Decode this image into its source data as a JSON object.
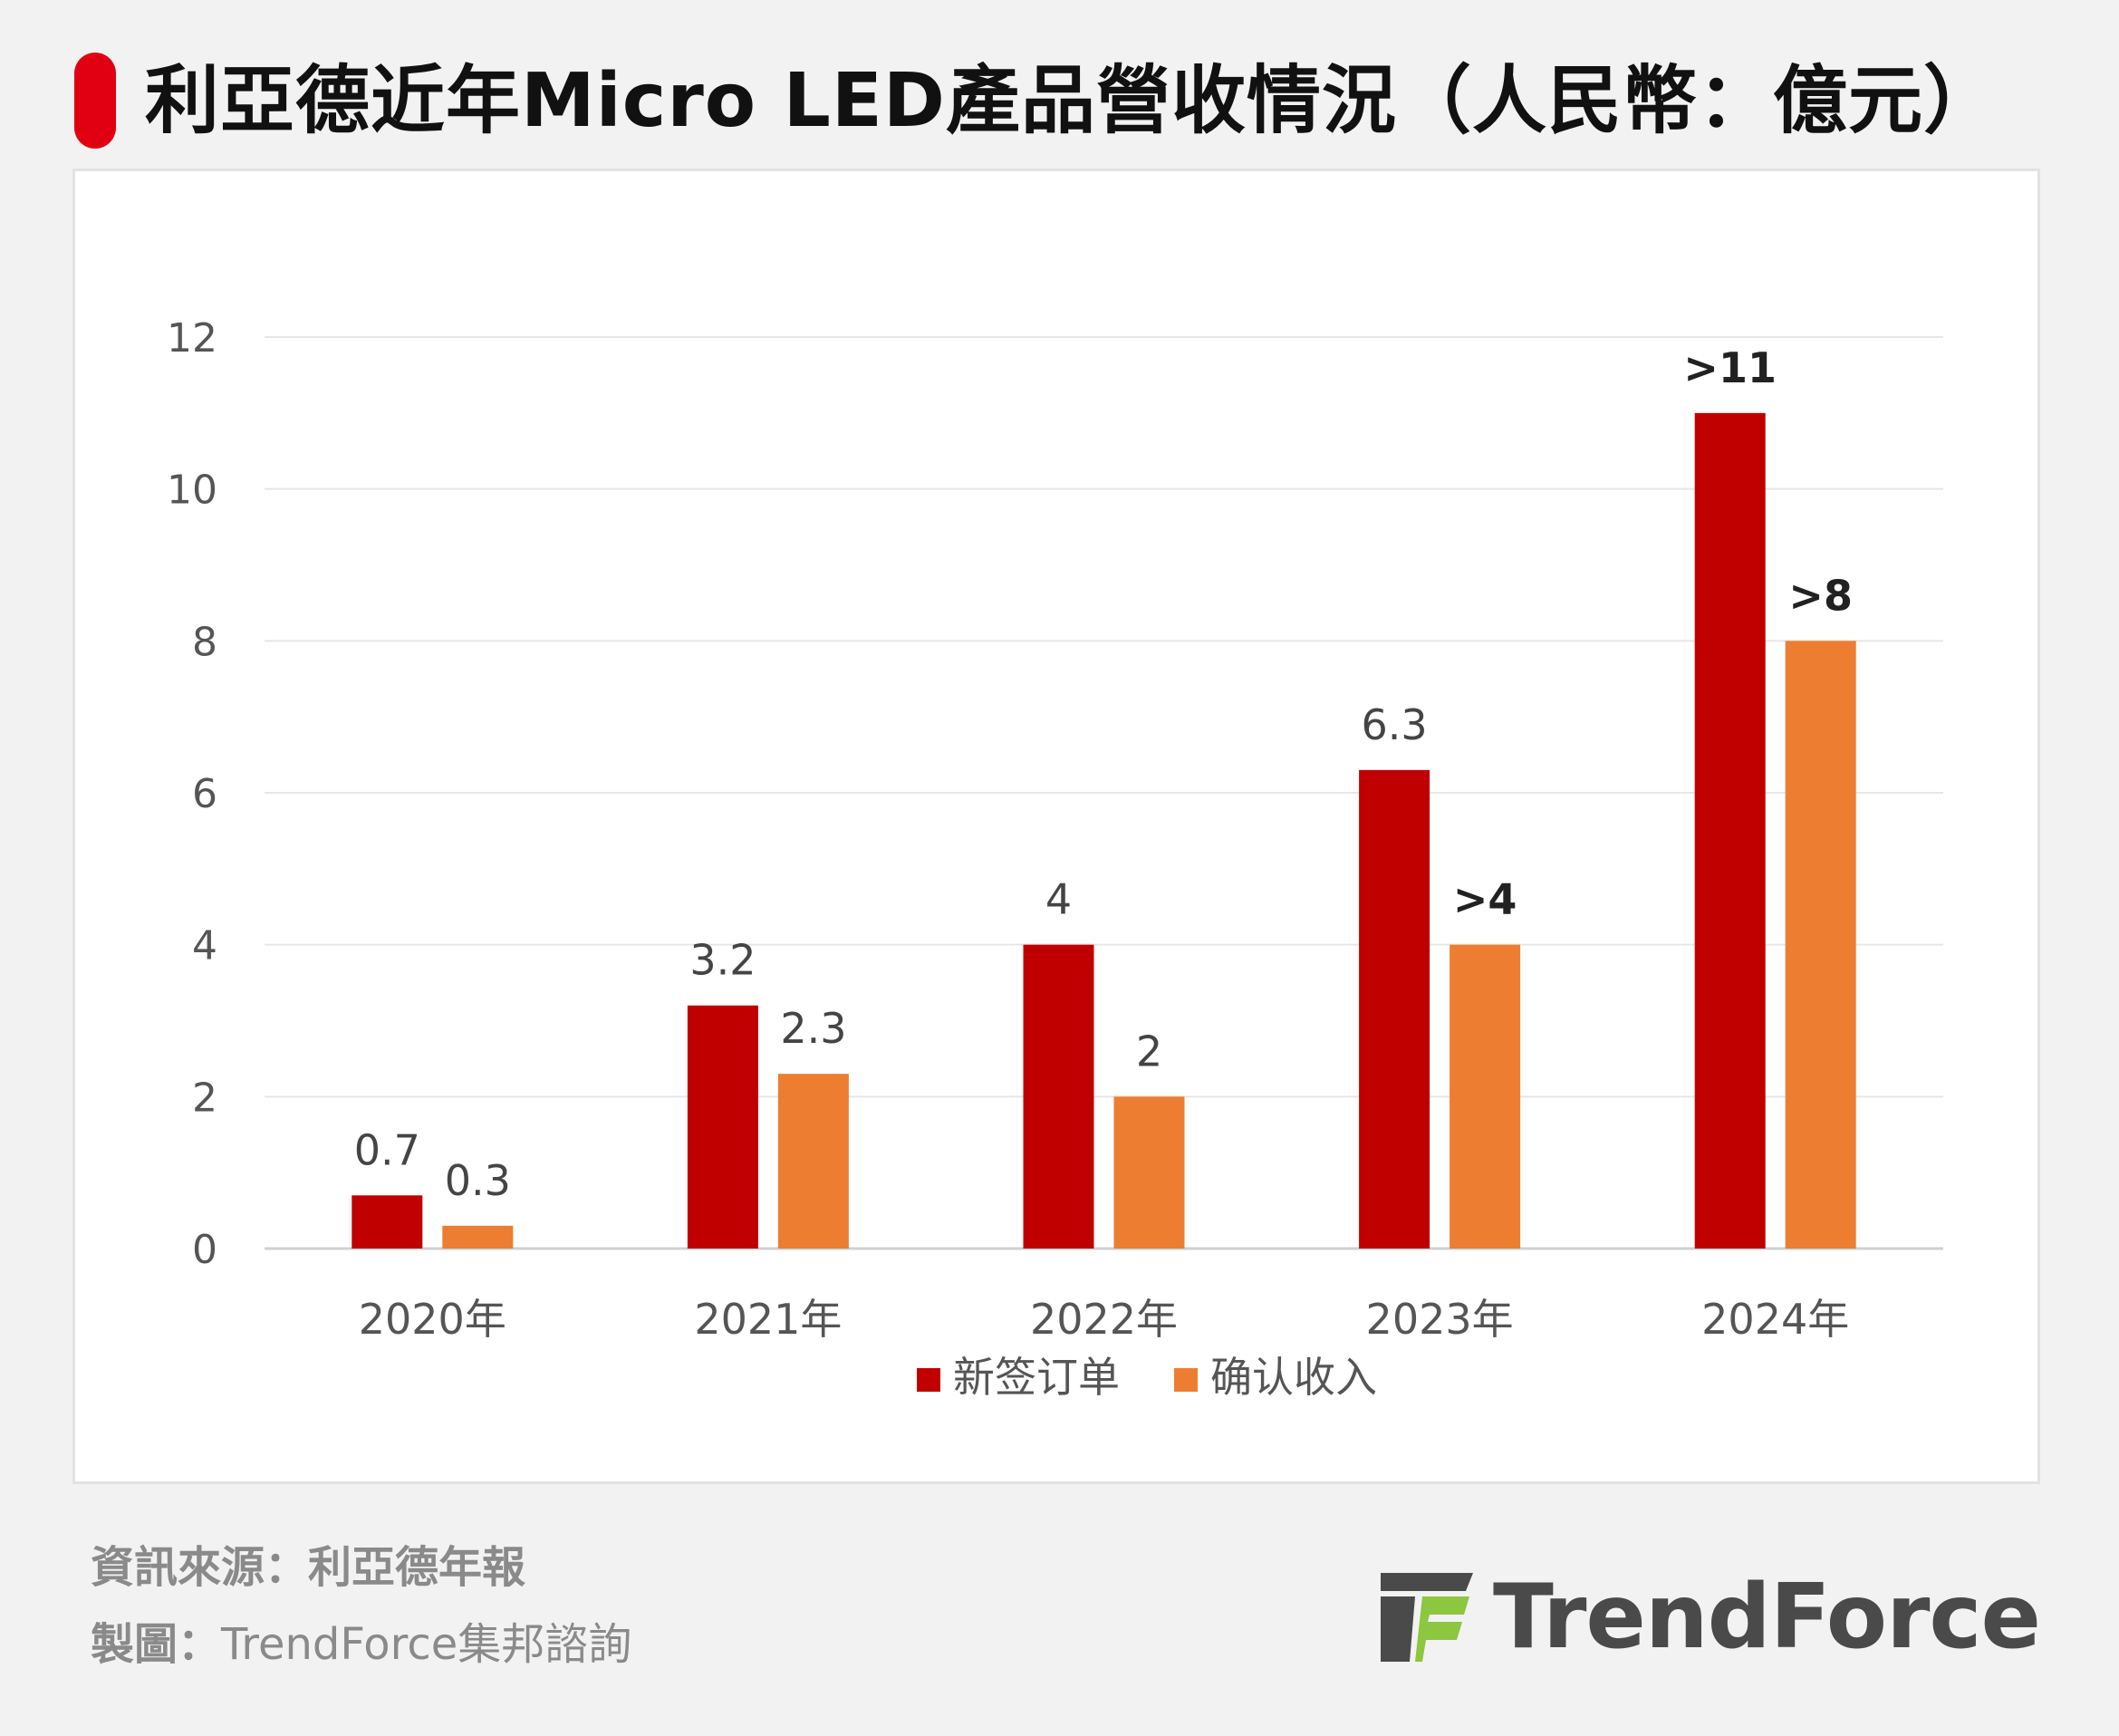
{
  "title": "利亞德近年Micro LED產品營收情況（人民幣：億元）",
  "chart_data": {
    "type": "bar",
    "categories": [
      "2020年",
      "2021年",
      "2022年",
      "2023年",
      "2024年"
    ],
    "series": [
      {
        "name": "新签订单",
        "color": "#c00000",
        "values": [
          0.7,
          3.2,
          4,
          6.3,
          11
        ],
        "labels": [
          "0.7",
          "3.2",
          "4",
          "6.3",
          ">11"
        ]
      },
      {
        "name": "确认收入",
        "color": "#ed7d31",
        "values": [
          0.3,
          2.3,
          2,
          4,
          8
        ],
        "labels": [
          "0.3",
          "2.3",
          "2",
          ">4",
          ">8"
        ]
      }
    ],
    "yticks": [
      "0",
      "2",
      "4",
      "6",
      "8",
      "10",
      "12"
    ],
    "ylim": [
      0,
      12
    ],
    "grid": true,
    "legend": "bottom"
  },
  "footer": {
    "source": "資訊來源：利亞德年報",
    "maker_label": "製圖：",
    "maker_value": "TrendForce集邦諮詢"
  },
  "logo": {
    "text": "TrendForce",
    "icon": "trendforce-logo-icon",
    "colors": {
      "dark": "#4a4a4a",
      "green": "#8dc63f"
    }
  }
}
